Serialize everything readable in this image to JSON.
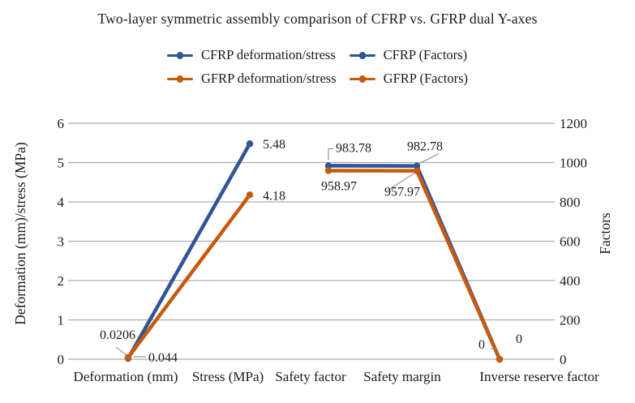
{
  "title": "Two-layer symmetric assembly comparison of CFRP vs. GFRP dual Y-axes",
  "colors": {
    "cfrp": "#2F5597",
    "gfrp": "#C55A11",
    "gridline": "#ADADAD",
    "text": "#1A1A1A",
    "leader": "#8C8C8C"
  },
  "legend": {
    "position": "top",
    "items": [
      {
        "label": "CFRP deformation/stress",
        "color": "#2F5597",
        "marker": "line-with-dot"
      },
      {
        "label": "CFRP (Factors)",
        "color": "#2F5597",
        "marker": "line-with-dot"
      },
      {
        "label": "GFRP deformation/stress",
        "color": "#C55A11",
        "marker": "line-with-dot"
      },
      {
        "label": "GFRP (Factors)",
        "color": "#C55A11",
        "marker": "line-with-dot"
      }
    ]
  },
  "chart_data": {
    "type": "line",
    "title": "Two-layer symmetric assembly comparison of CFRP vs. GFRP dual Y-axes",
    "grid": true,
    "legend_position": "top",
    "categories": [
      "Deformation (mm)",
      "Stress (MPa)",
      "Safety factor",
      "Safety margin",
      "Inverse reserve factor"
    ],
    "left_axis": {
      "title": "Deformation (mm)/stress (MPa)",
      "min": 0,
      "max": 6,
      "ticks": [
        0,
        1,
        2,
        3,
        4,
        5,
        6
      ]
    },
    "right_axis": {
      "title": "Factors",
      "min": 0,
      "max": 1200,
      "ticks": [
        0,
        200,
        400,
        600,
        800,
        1000,
        1200
      ]
    },
    "series": [
      {
        "name": "CFRP deformation/stress",
        "color": "#2F5597",
        "axis": "left",
        "category_start": 0,
        "values": [
          0.0206,
          5.48
        ],
        "point_labels": [
          {
            "text": "0.0206",
            "anchor": "middle",
            "dx": -13,
            "dy": -24,
            "leaders": [
              [
                -15,
                -14,
                -2,
                -4
              ]
            ]
          },
          {
            "text": "5.48",
            "anchor": "start",
            "dx": 16,
            "dy": 6,
            "leaders": []
          }
        ]
      },
      {
        "name": "GFRP deformation/stress",
        "color": "#C55A11",
        "axis": "left",
        "category_start": 0,
        "values": [
          0.044,
          4.18
        ],
        "point_labels": [
          {
            "text": "0.044",
            "anchor": "start",
            "dx": 25,
            "dy": 5,
            "leaders": [
              [
                7,
                -1,
                22,
                -1
              ]
            ]
          },
          {
            "text": "4.18",
            "anchor": "start",
            "dx": 16,
            "dy": 6,
            "leaders": []
          }
        ]
      },
      {
        "name": "CFRP (Factors)",
        "color": "#2F5597",
        "axis": "right",
        "category_start": 2,
        "values": [
          983.78,
          982.78,
          0
        ],
        "point_labels": [
          {
            "text": "983.78",
            "anchor": "start",
            "dx": 9,
            "dy": -17,
            "leaders": [
              [
                0,
                -7,
                0,
                -21
              ],
              [
                0,
                -21,
                6,
                -21
              ]
            ]
          },
          {
            "text": "982.78",
            "anchor": "start",
            "dx": -12,
            "dy": -19,
            "leaders": [
              [
                3,
                -3,
                27,
                -15
              ]
            ]
          },
          {
            "text": "0",
            "anchor": "middle",
            "dx": 24,
            "dy": -20,
            "leaders": []
          }
        ]
      },
      {
        "name": "GFRP (Factors)",
        "color": "#C55A11",
        "axis": "right",
        "category_start": 2,
        "values": [
          958.97,
          957.97,
          0
        ],
        "point_labels": [
          {
            "text": "958.97",
            "anchor": "middle",
            "dx": 13,
            "dy": 24,
            "leaders": []
          },
          {
            "text": "957.97",
            "anchor": "middle",
            "dx": -18,
            "dy": 31,
            "leaders": [
              [
                -3,
                3,
                -36,
                24
              ]
            ]
          },
          {
            "text": "0",
            "anchor": "middle",
            "dx": -22,
            "dy": -13,
            "leaders": [
              [
                -11,
                -13,
                -4,
                -13
              ]
            ]
          }
        ]
      }
    ]
  }
}
